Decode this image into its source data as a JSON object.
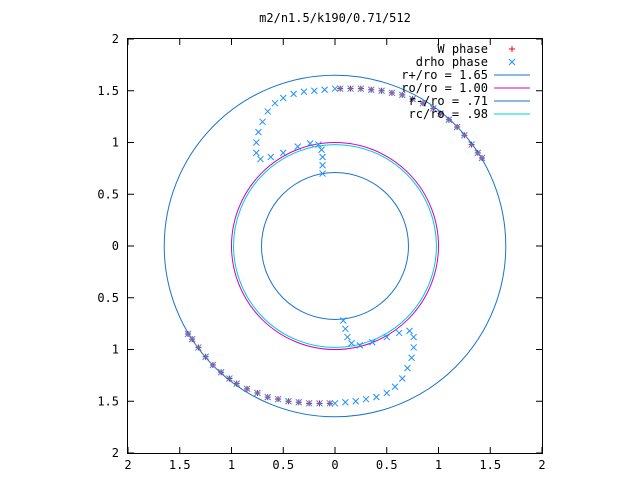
{
  "chart_data": {
    "type": "scatter",
    "title": "m2/n1.5/k190/0.71/512",
    "xlabel": "",
    "ylabel": "",
    "xlim": [
      -2,
      2
    ],
    "ylim": [
      -2,
      2
    ],
    "x_ticks": [
      -2,
      -1.5,
      -1,
      -0.5,
      0,
      0.5,
      1,
      1.5,
      2
    ],
    "y_ticks": [
      -2,
      -1.5,
      -1,
      -0.5,
      0,
      0.5,
      1,
      1.5,
      2
    ],
    "x_tick_labels": [
      "2",
      "1.5",
      "1",
      "0.5",
      "0",
      "0.5",
      "1",
      "1.5",
      "2"
    ],
    "y_tick_labels": [
      "2",
      "1.5",
      "1",
      "0.5",
      "0",
      "0.5",
      "1",
      "1.5",
      "2"
    ],
    "grid": false,
    "legend_position": "top-right",
    "series": [
      {
        "name": "W phase",
        "marker": "plus",
        "color": "#ff0000",
        "points": [
          [
            0.05,
            1.52
          ],
          [
            0.15,
            1.52
          ],
          [
            0.25,
            1.52
          ],
          [
            0.35,
            1.51
          ],
          [
            0.45,
            1.5
          ],
          [
            0.55,
            1.48
          ],
          [
            0.65,
            1.46
          ],
          [
            0.75,
            1.42
          ],
          [
            0.85,
            1.38
          ],
          [
            0.95,
            1.33
          ],
          [
            1.02,
            1.28
          ],
          [
            1.1,
            1.22
          ],
          [
            1.18,
            1.15
          ],
          [
            1.25,
            1.07
          ],
          [
            1.32,
            0.98
          ],
          [
            1.38,
            0.9
          ],
          [
            1.42,
            0.85
          ],
          [
            -0.05,
            -1.52
          ],
          [
            -0.15,
            -1.52
          ],
          [
            -0.25,
            -1.52
          ],
          [
            -0.35,
            -1.51
          ],
          [
            -0.45,
            -1.5
          ],
          [
            -0.55,
            -1.48
          ],
          [
            -0.65,
            -1.46
          ],
          [
            -0.75,
            -1.42
          ],
          [
            -0.85,
            -1.38
          ],
          [
            -0.95,
            -1.33
          ],
          [
            -1.02,
            -1.28
          ],
          [
            -1.1,
            -1.22
          ],
          [
            -1.18,
            -1.15
          ],
          [
            -1.25,
            -1.07
          ],
          [
            -1.32,
            -0.98
          ],
          [
            -1.38,
            -0.9
          ],
          [
            -1.42,
            -0.85
          ]
        ]
      },
      {
        "name": "drho phase",
        "marker": "cross",
        "color": "#1e90ff",
        "points": [
          [
            -0.12,
            0.7
          ],
          [
            -0.12,
            0.78
          ],
          [
            -0.12,
            0.86
          ],
          [
            -0.13,
            0.93
          ],
          [
            -0.16,
            0.98
          ],
          [
            -0.24,
            0.99
          ],
          [
            -0.36,
            0.96
          ],
          [
            -0.5,
            0.9
          ],
          [
            -0.62,
            0.86
          ],
          [
            -0.72,
            0.84
          ],
          [
            -0.76,
            0.9
          ],
          [
            -0.76,
            1.0
          ],
          [
            -0.74,
            1.1
          ],
          [
            -0.7,
            1.2
          ],
          [
            -0.65,
            1.3
          ],
          [
            -0.58,
            1.38
          ],
          [
            -0.5,
            1.43
          ],
          [
            -0.4,
            1.47
          ],
          [
            -0.3,
            1.49
          ],
          [
            -0.2,
            1.5
          ],
          [
            -0.1,
            1.51
          ],
          [
            0.0,
            1.52
          ],
          [
            0.05,
            1.52
          ],
          [
            0.15,
            1.52
          ],
          [
            0.25,
            1.52
          ],
          [
            0.35,
            1.51
          ],
          [
            0.45,
            1.5
          ],
          [
            0.55,
            1.48
          ],
          [
            0.65,
            1.46
          ],
          [
            0.75,
            1.42
          ],
          [
            0.85,
            1.38
          ],
          [
            0.95,
            1.33
          ],
          [
            1.02,
            1.28
          ],
          [
            1.1,
            1.22
          ],
          [
            1.18,
            1.15
          ],
          [
            1.25,
            1.07
          ],
          [
            1.32,
            0.98
          ],
          [
            1.38,
            0.9
          ],
          [
            1.42,
            0.85
          ],
          [
            0.08,
            -0.72
          ],
          [
            0.1,
            -0.8
          ],
          [
            0.12,
            -0.88
          ],
          [
            0.16,
            -0.94
          ],
          [
            0.24,
            -0.96
          ],
          [
            0.36,
            -0.93
          ],
          [
            0.5,
            -0.88
          ],
          [
            0.62,
            -0.84
          ],
          [
            0.72,
            -0.82
          ],
          [
            0.76,
            -0.88
          ],
          [
            0.76,
            -0.98
          ],
          [
            0.74,
            -1.08
          ],
          [
            0.7,
            -1.18
          ],
          [
            0.65,
            -1.28
          ],
          [
            0.58,
            -1.36
          ],
          [
            0.5,
            -1.42
          ],
          [
            0.4,
            -1.46
          ],
          [
            0.3,
            -1.48
          ],
          [
            0.2,
            -1.5
          ],
          [
            0.1,
            -1.51
          ],
          [
            0.0,
            -1.52
          ],
          [
            -0.05,
            -1.52
          ],
          [
            -0.15,
            -1.52
          ],
          [
            -0.25,
            -1.52
          ],
          [
            -0.35,
            -1.51
          ],
          [
            -0.45,
            -1.5
          ],
          [
            -0.55,
            -1.48
          ],
          [
            -0.65,
            -1.46
          ],
          [
            -0.75,
            -1.42
          ],
          [
            -0.85,
            -1.38
          ],
          [
            -0.95,
            -1.33
          ],
          [
            -1.02,
            -1.28
          ],
          [
            -1.1,
            -1.22
          ],
          [
            -1.18,
            -1.15
          ],
          [
            -1.25,
            -1.07
          ],
          [
            -1.32,
            -0.98
          ],
          [
            -1.38,
            -0.9
          ],
          [
            -1.42,
            -0.85
          ]
        ]
      },
      {
        "name": "r+/ro = 1.65",
        "marker": "circle",
        "radius": 1.65,
        "color": "#1874cd"
      },
      {
        "name": "ro/ro = 1.00",
        "marker": "circle",
        "radius": 1.0,
        "color": "#cc00cc"
      },
      {
        "name": "r-/ro = .71",
        "marker": "circle",
        "radius": 0.71,
        "color": "#1874cd"
      },
      {
        "name": "rc/ro = .98",
        "marker": "circle",
        "radius": 0.98,
        "color": "#00cccc"
      }
    ]
  }
}
